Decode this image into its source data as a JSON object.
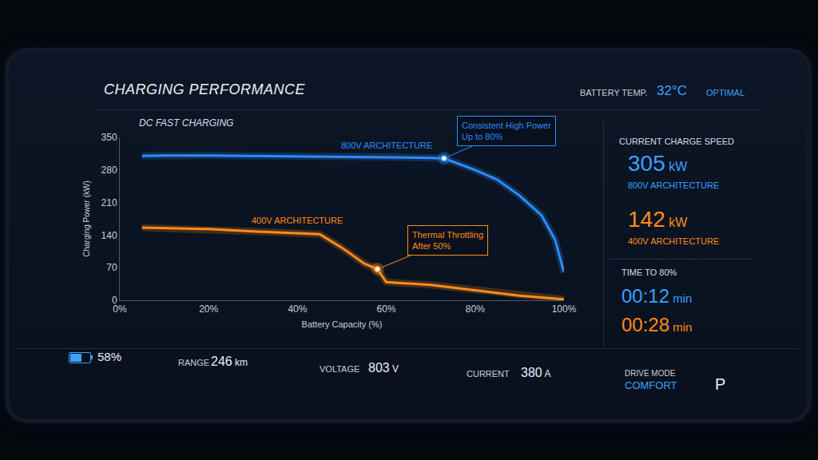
{
  "header": {
    "title": "CHARGING PERFORMANCE",
    "battery_temp_label": "BATTERY TEMP.",
    "battery_temp": {
      "value": 32,
      "unit": "°C"
    },
    "battery_status": "OPTIMAL"
  },
  "chart_data": {
    "type": "line",
    "title": "DC FAST CHARGING",
    "x_label": "Battery Capacity (%)",
    "y_label": "Charging Power (kW)",
    "xlim": [
      0,
      100
    ],
    "xticks": [
      {
        "value": 0,
        "label": "0%"
      },
      {
        "value": 20,
        "label": "20%"
      },
      {
        "value": 40,
        "label": "40%"
      },
      {
        "value": 60,
        "label": "60%"
      },
      {
        "value": 80,
        "label": "80%"
      },
      {
        "value": 100,
        "label": "100%"
      }
    ],
    "ylim": [
      0,
      350
    ],
    "yticks": [
      0,
      70,
      140,
      210,
      280,
      350
    ],
    "grid": false,
    "series": [
      {
        "name": "800V ARCHITECTURE",
        "color": "#2a8cff",
        "x": [
          5,
          10,
          20,
          30,
          40,
          50,
          60,
          70,
          73,
          80,
          85,
          90,
          95,
          98,
          100
        ],
        "values": [
          310,
          311,
          311,
          310,
          310,
          309,
          308,
          306,
          305,
          280,
          259,
          225,
          182,
          130,
          60
        ]
      },
      {
        "name": "400V ARCHITECTURE",
        "color": "#ff8c1a",
        "x": [
          5,
          10,
          20,
          30,
          40,
          45,
          50,
          55,
          58,
          60,
          70,
          80,
          90,
          100
        ],
        "values": [
          156,
          155,
          153,
          148,
          144,
          142,
          113,
          79,
          67,
          39,
          33,
          22,
          10,
          2
        ]
      }
    ],
    "annotations": [
      {
        "text": [
          "Consistent High Power",
          "Up to 80%"
        ],
        "x": 73,
        "y": 305,
        "color": "#2a8cff"
      },
      {
        "text": [
          "Thermal Throttling",
          "After 50%"
        ],
        "x": 58,
        "y": 67,
        "color": "#ff8c1a"
      }
    ]
  },
  "side_panel": {
    "speed_title": "CURRENT CHARGE SPEED",
    "speeds": [
      {
        "value": 305,
        "unit": "kW",
        "label": "800V ARCHITECTURE",
        "color": "#3ca0ff"
      },
      {
        "value": 142,
        "unit": "kW",
        "label": "400V ARCHITECTURE",
        "color": "#ff8c1a"
      }
    ],
    "time_title": "TIME TO 80%",
    "times": [
      {
        "value": "00:12",
        "unit": "min",
        "color": "#3ca0ff"
      },
      {
        "value": "00:28",
        "unit": "min",
        "color": "#ff8c1a"
      }
    ]
  },
  "status_bar": {
    "battery": {
      "value": 58,
      "unit": "%"
    },
    "range": {
      "label": "RANGE",
      "value": 246,
      "unit": "km"
    },
    "voltage": {
      "label": "VOLTAGE",
      "value": 803,
      "unit": "V"
    },
    "current": {
      "label": "CURRENT",
      "value": 380,
      "unit": "A"
    },
    "drive_mode": {
      "label": "DRIVE MODE",
      "value": "COMFORT"
    },
    "gear": "P"
  }
}
